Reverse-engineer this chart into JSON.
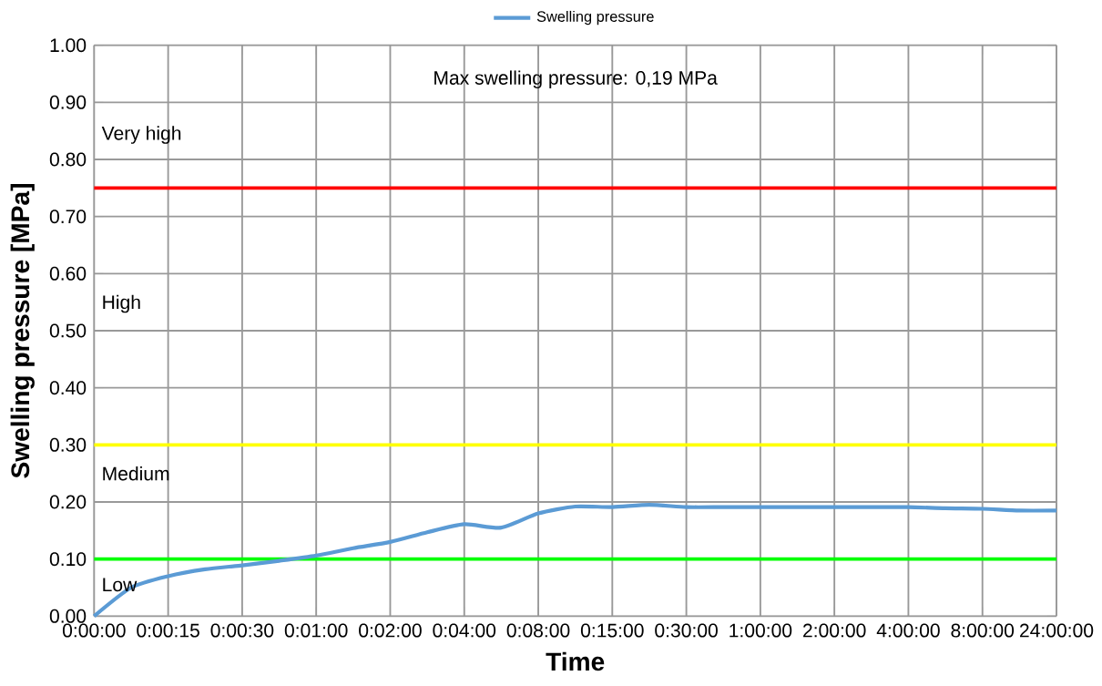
{
  "chart_data": {
    "type": "line",
    "xlabel": "Time",
    "ylabel": "Swelling pressure [MPa]",
    "categories": [
      "0:00:00",
      null,
      "0:00:15",
      null,
      "0:00:30",
      null,
      "0:01:00",
      null,
      "0:02:00",
      null,
      "0:04:00",
      null,
      "0:08:00",
      null,
      "0:15:00",
      null,
      "0:30:00",
      null,
      "1:00:00",
      null,
      "2:00:00",
      null,
      "4:00:00",
      null,
      "8:00:00",
      null,
      "24:00:00"
    ],
    "series": [
      {
        "name": "Swelling pressure",
        "color": "#5b9bd5",
        "values": [
          0,
          0.05,
          0.07,
          0.082,
          0.089,
          0.097,
          0.106,
          0.119,
          0.13,
          0.147,
          0.161,
          0.155,
          0.18,
          0.192,
          0.191,
          0.195,
          0.191,
          0.191,
          0.191,
          0.191,
          0.191,
          0.191,
          0.191,
          0.189,
          0.188,
          0.185,
          0.185
        ]
      }
    ],
    "ylim": [
      0,
      1
    ],
    "yticks": [
      {
        "value": 0,
        "label": "0.00"
      },
      {
        "value": 0.1,
        "label": "0.10"
      },
      {
        "value": 0.2,
        "label": "0.20"
      },
      {
        "value": 0.3,
        "label": "0.30"
      },
      {
        "value": 0.4,
        "label": "0.40"
      },
      {
        "value": 0.5,
        "label": "0.50"
      },
      {
        "value": 0.6,
        "label": "0.60"
      },
      {
        "value": 0.7,
        "label": "0.70"
      },
      {
        "value": 0.8,
        "label": "0.80"
      },
      {
        "value": 0.9,
        "label": "0.90"
      },
      {
        "value": 1,
        "label": "1.00"
      }
    ],
    "ref_lines": [
      {
        "axis": "y",
        "value": 0.75,
        "color": "#ff0000"
      },
      {
        "axis": "y",
        "value": 0.3,
        "color": "#ffff00"
      },
      {
        "axis": "y",
        "value": 0.1,
        "color": "#00ff00"
      }
    ],
    "annotations": [
      "Max swelling pressure: 0,19 MPa",
      "Very high",
      "High",
      "Medium",
      "Low"
    ],
    "grid": true,
    "legend": "top",
    "marker": "none",
    "line_style": "solid"
  }
}
